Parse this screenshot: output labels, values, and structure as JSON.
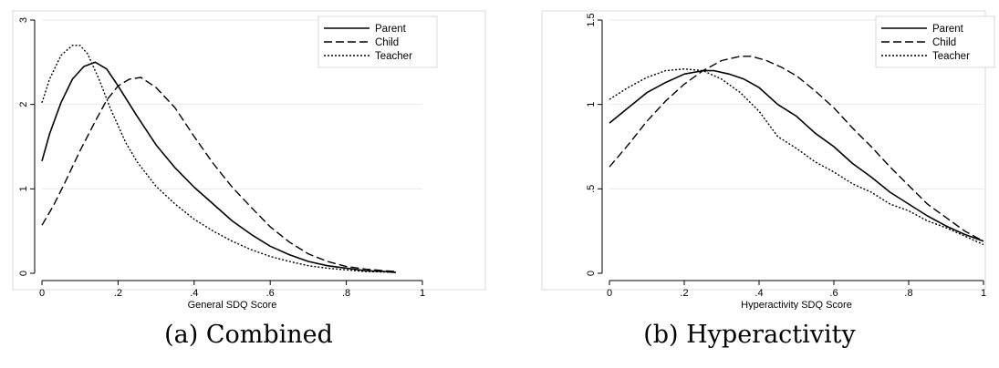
{
  "panels": [
    {
      "caption": "(a) Combined",
      "chart_data": {
        "type": "line",
        "xlabel": "General SDQ Score",
        "ylabel": "",
        "xlim": [
          0,
          1
        ],
        "ylim": [
          0,
          3
        ],
        "x_ticks": [
          "0",
          ".2",
          ".4",
          ".6",
          ".8",
          "1"
        ],
        "x_tick_values": [
          0,
          0.2,
          0.4,
          0.6,
          0.8,
          1
        ],
        "y_ticks": [
          "0",
          "1",
          "2",
          "3"
        ],
        "y_tick_values": [
          0,
          1,
          2,
          3
        ],
        "grid": "horizontal",
        "legend_position": "top-right",
        "series": [
          {
            "name": "Parent",
            "style": "solid",
            "color": "#000000",
            "x": [
              0,
              0.02,
              0.05,
              0.08,
              0.11,
              0.14,
              0.17,
              0.2,
              0.25,
              0.3,
              0.35,
              0.4,
              0.45,
              0.5,
              0.55,
              0.6,
              0.65,
              0.7,
              0.75,
              0.8,
              0.85,
              0.9,
              0.93
            ],
            "y": [
              1.33,
              1.65,
              2.02,
              2.3,
              2.45,
              2.5,
              2.42,
              2.22,
              1.86,
              1.52,
              1.25,
              1.02,
              0.82,
              0.62,
              0.46,
              0.32,
              0.22,
              0.14,
              0.09,
              0.06,
              0.03,
              0.02,
              0.01
            ]
          },
          {
            "name": "Child",
            "style": "dashed",
            "color": "#000000",
            "x": [
              0,
              0.03,
              0.06,
              0.1,
              0.14,
              0.17,
              0.2,
              0.23,
              0.26,
              0.3,
              0.35,
              0.4,
              0.45,
              0.5,
              0.55,
              0.6,
              0.65,
              0.7,
              0.75,
              0.8,
              0.85,
              0.9,
              0.93
            ],
            "y": [
              0.57,
              0.8,
              1.07,
              1.45,
              1.8,
              2.05,
              2.22,
              2.3,
              2.32,
              2.2,
              1.96,
              1.62,
              1.3,
              1.02,
              0.78,
              0.55,
              0.37,
              0.23,
              0.14,
              0.08,
              0.05,
              0.03,
              0.02
            ]
          },
          {
            "name": "Teacher",
            "style": "dotted",
            "color": "#000000",
            "x": [
              0,
              0.02,
              0.05,
              0.08,
              0.1,
              0.12,
              0.15,
              0.18,
              0.22,
              0.25,
              0.3,
              0.35,
              0.4,
              0.45,
              0.5,
              0.55,
              0.6,
              0.65,
              0.7,
              0.75,
              0.8,
              0.85,
              0.9,
              0.93
            ],
            "y": [
              2.02,
              2.3,
              2.58,
              2.7,
              2.7,
              2.6,
              2.3,
              1.95,
              1.55,
              1.32,
              1.03,
              0.82,
              0.64,
              0.5,
              0.38,
              0.28,
              0.2,
              0.14,
              0.09,
              0.06,
              0.04,
              0.02,
              0.015,
              0.01
            ]
          }
        ]
      }
    },
    {
      "caption": "(b) Hyperactivity",
      "chart_data": {
        "type": "line",
        "xlabel": "Hyperactivity SDQ Score",
        "ylabel": "",
        "xlim": [
          0,
          1
        ],
        "ylim": [
          0,
          1.5
        ],
        "x_ticks": [
          "0",
          ".2",
          ".4",
          ".6",
          ".8",
          "1"
        ],
        "x_tick_values": [
          0,
          0.2,
          0.4,
          0.6,
          0.8,
          1
        ],
        "y_ticks": [
          "0",
          ".5",
          "1",
          "1.5"
        ],
        "y_tick_values": [
          0,
          0.5,
          1,
          1.5
        ],
        "grid": "horizontal",
        "legend_position": "top-right",
        "series": [
          {
            "name": "Parent",
            "style": "solid",
            "color": "#000000",
            "x": [
              0,
              0.05,
              0.1,
              0.15,
              0.2,
              0.25,
              0.28,
              0.32,
              0.36,
              0.4,
              0.45,
              0.5,
              0.55,
              0.6,
              0.65,
              0.7,
              0.75,
              0.8,
              0.85,
              0.9,
              0.95,
              1.0
            ],
            "y": [
              0.89,
              0.98,
              1.07,
              1.13,
              1.18,
              1.2,
              1.2,
              1.18,
              1.15,
              1.1,
              1.0,
              0.93,
              0.83,
              0.75,
              0.65,
              0.57,
              0.48,
              0.41,
              0.34,
              0.28,
              0.23,
              0.19
            ]
          },
          {
            "name": "Child",
            "style": "dashed",
            "color": "#000000",
            "x": [
              0,
              0.05,
              0.1,
              0.15,
              0.2,
              0.25,
              0.3,
              0.35,
              0.38,
              0.42,
              0.46,
              0.5,
              0.55,
              0.6,
              0.65,
              0.7,
              0.75,
              0.8,
              0.85,
              0.9,
              0.95,
              1.0
            ],
            "y": [
              0.63,
              0.76,
              0.9,
              1.02,
              1.12,
              1.2,
              1.26,
              1.285,
              1.285,
              1.26,
              1.22,
              1.17,
              1.08,
              0.98,
              0.86,
              0.75,
              0.63,
              0.52,
              0.41,
              0.33,
              0.25,
              0.19
            ]
          },
          {
            "name": "Teacher",
            "style": "dotted",
            "color": "#000000",
            "x": [
              0,
              0.05,
              0.1,
              0.15,
              0.2,
              0.25,
              0.3,
              0.35,
              0.4,
              0.45,
              0.5,
              0.55,
              0.6,
              0.65,
              0.7,
              0.75,
              0.8,
              0.85,
              0.9,
              0.95,
              1.0
            ],
            "y": [
              1.03,
              1.1,
              1.16,
              1.2,
              1.21,
              1.2,
              1.15,
              1.07,
              0.96,
              0.81,
              0.74,
              0.66,
              0.6,
              0.53,
              0.48,
              0.41,
              0.37,
              0.31,
              0.27,
              0.22,
              0.17
            ]
          }
        ]
      }
    }
  ]
}
